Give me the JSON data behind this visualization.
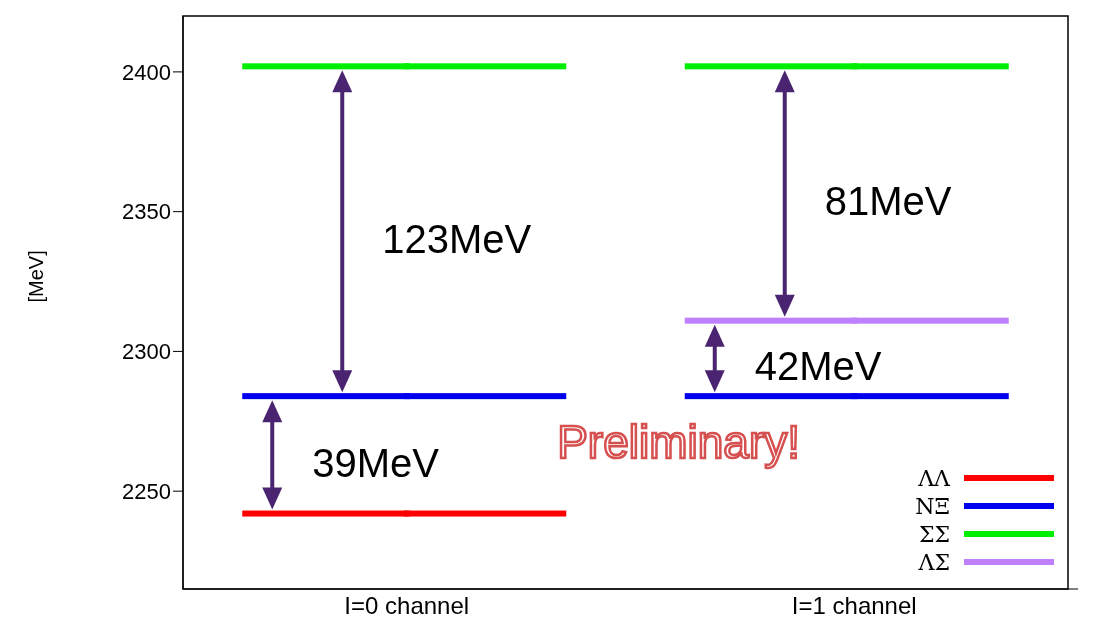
{
  "chart_data": {
    "type": "scatter",
    "ylabel": "[MeV]",
    "categories": [
      "I=0 channel",
      "I=1 channel"
    ],
    "marker": "square",
    "series": [
      {
        "name": "ΛΛ",
        "color": "#ff0000",
        "values": [
          2242,
          null
        ]
      },
      {
        "name": "NΞ",
        "color": "#0000ee",
        "values": [
          2284,
          2284
        ]
      },
      {
        "name": "ΣΣ",
        "color": "#00ee00",
        "values": [
          2402,
          2402
        ]
      },
      {
        "name": "ΛΣ",
        "color": "#bf80ff",
        "values": [
          null,
          2311
        ]
      }
    ],
    "ylim": [
      2215,
      2420
    ],
    "yticks": [
      2250,
      2300,
      2350,
      2400
    ],
    "legend": "bottom right",
    "annotations": [
      "123MeV",
      "39MeV",
      "81MeV",
      "42MeV",
      "Preliminary!"
    ]
  }
}
